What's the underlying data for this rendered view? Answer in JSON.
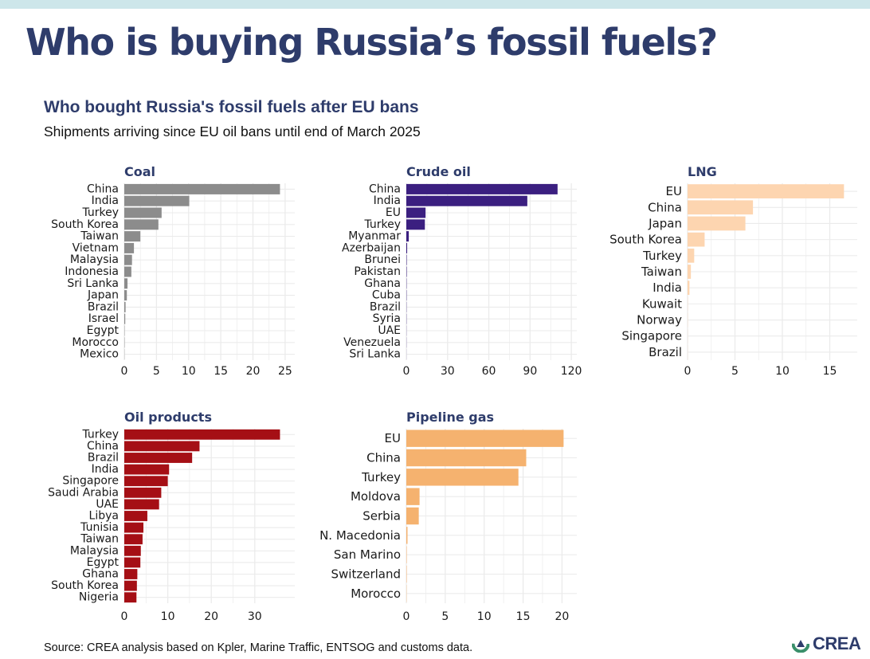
{
  "header": {
    "title": "Who is buying Russia’s fossil fuels?",
    "figure_title": "Who bought Russia's fossil fuels after EU bans",
    "figure_subtitle": "Shipments arriving since EU oil bans until end of March 2025"
  },
  "footer": {
    "source": "Source: CREA analysis based on Kpler, Marine Traffic, ENTSOG and customs data.",
    "logo_text": "CREA"
  },
  "colors": {
    "title": "#2e3c6b",
    "grid": "#ebebeb",
    "axis_text": "#1a1a1a",
    "logo_green": "#3a8f6a",
    "logo_navy": "#2e3c6b"
  },
  "chart_data": [
    {
      "type": "bar",
      "orientation": "horizontal",
      "title": "Coal",
      "color": "#8c8c8c",
      "categories": [
        "China",
        "India",
        "Turkey",
        "South Korea",
        "Taiwan",
        "Vietnam",
        "Malaysia",
        "Indonesia",
        "Sri Lanka",
        "Japan",
        "Brazil",
        "Israel",
        "Egypt",
        "Morocco",
        "Mexico"
      ],
      "values": [
        24.2,
        10.1,
        5.8,
        5.3,
        2.5,
        1.5,
        1.2,
        1.1,
        0.5,
        0.4,
        0.2,
        0.15,
        0.05,
        0.05,
        0.03
      ],
      "xlim": [
        0,
        26.5
      ],
      "xticks": [
        0,
        5,
        10,
        15,
        20,
        25
      ]
    },
    {
      "type": "bar",
      "orientation": "horizontal",
      "title": "Crude oil",
      "color": "#3b1f80",
      "categories": [
        "China",
        "India",
        "EU",
        "Turkey",
        "Myanmar",
        "Azerbaijan",
        "Brunei",
        "Pakistan",
        "Ghana",
        "Cuba",
        "Brazil",
        "Syria",
        "UAE",
        "Venezuela",
        "Sri Lanka"
      ],
      "values": [
        110,
        88,
        14,
        13.5,
        1.8,
        0.6,
        0.3,
        0.3,
        0.2,
        0.2,
        0.15,
        0.15,
        0.1,
        0.1,
        0.05
      ],
      "xlim": [
        0,
        124
      ],
      "xticks": [
        0,
        30,
        60,
        90,
        120
      ]
    },
    {
      "type": "bar",
      "orientation": "horizontal",
      "title": "LNG",
      "color": "#fdd5b0",
      "categories": [
        "EU",
        "China",
        "Japan",
        "South Korea",
        "Turkey",
        "Taiwan",
        "India",
        "Kuwait",
        "Norway",
        "Singapore",
        "Brazil"
      ],
      "values": [
        16.5,
        6.9,
        6.1,
        1.8,
        0.7,
        0.35,
        0.2,
        0.02,
        0.02,
        0.01,
        0.01
      ],
      "xlim": [
        0,
        17.9
      ],
      "xticks": [
        0,
        5,
        10,
        15
      ]
    },
    {
      "type": "bar",
      "orientation": "horizontal",
      "title": "Oil products",
      "color": "#a50f15",
      "categories": [
        "Turkey",
        "China",
        "Brazil",
        "India",
        "Singapore",
        "Saudi Arabia",
        "UAE",
        "Libya",
        "Tunisia",
        "Taiwan",
        "Malaysia",
        "Egypt",
        "Ghana",
        "South Korea",
        "Nigeria"
      ],
      "values": [
        35.8,
        17.3,
        15.6,
        10.3,
        10.0,
        8.5,
        8.0,
        5.3,
        4.4,
        4.2,
        3.8,
        3.7,
        3.0,
        2.9,
        2.8
      ],
      "xlim": [
        0,
        39.2
      ],
      "xticks": [
        0,
        10,
        20,
        30
      ]
    },
    {
      "type": "bar",
      "orientation": "horizontal",
      "title": "Pipeline gas",
      "color": "#f5b26f",
      "categories": [
        "EU",
        "China",
        "Turkey",
        "Moldova",
        "Serbia",
        "N. Macedonia",
        "San Marino",
        "Switzerland",
        "Morocco"
      ],
      "values": [
        20.2,
        15.4,
        14.4,
        1.7,
        1.6,
        0.15,
        0.05,
        0.05,
        0.03
      ],
      "xlim": [
        0,
        21.9
      ],
      "xticks": [
        0,
        5,
        10,
        15,
        20
      ]
    }
  ]
}
